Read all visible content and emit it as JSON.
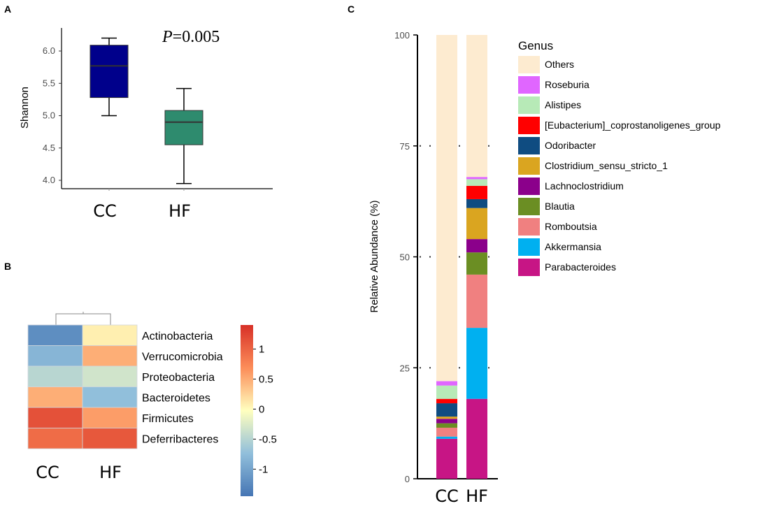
{
  "chart_data": [
    {
      "panel": "A",
      "type": "box",
      "annotation": "P=0.005",
      "annotation_italic": "P",
      "annotation_value": "=0.005",
      "xlabel": "",
      "ylabel": "Shannon",
      "ylim": [
        3.85,
        6.3
      ],
      "yticks": [
        "4.0",
        "4.5",
        "5.0",
        "5.5",
        "6.0"
      ],
      "categories": [
        "CC",
        "HF"
      ],
      "boxes": [
        {
          "name": "CC",
          "min": 5.0,
          "q1": 5.28,
          "median": 5.77,
          "q3": 6.09,
          "max": 6.2,
          "color": "#00008b"
        },
        {
          "name": "HF",
          "min": 3.95,
          "q1": 4.55,
          "median": 4.9,
          "q3": 5.08,
          "max": 5.42,
          "color": "#2e8b6e"
        }
      ]
    },
    {
      "panel": "B",
      "type": "heatmap",
      "rows": [
        "Actinobacteria",
        "Verrucomicrobia",
        "Proteobacteria",
        "Bacteroidetes",
        "Firmicutes",
        "Deferribacteres"
      ],
      "columns": [
        "CC",
        "HF"
      ],
      "values": [
        [
          -1.2,
          0.1
        ],
        [
          -0.8,
          0.5
        ],
        [
          -0.45,
          -0.3
        ],
        [
          0.5,
          -0.7
        ],
        [
          1.15,
          0.6
        ],
        [
          0.95,
          1.1
        ]
      ],
      "colorbar": {
        "min": -1.45,
        "max": 1.4,
        "ticks": [
          1,
          0.5,
          0,
          -0.5,
          -1
        ],
        "tick_labels": [
          "1",
          "0.5",
          "0",
          "-0.5",
          "-1"
        ]
      }
    },
    {
      "panel": "C",
      "type": "stacked-bar",
      "title": "",
      "xlabel": "",
      "ylabel": "Relative Abundance (%)",
      "ylim": [
        0,
        100
      ],
      "yticks": [
        "0",
        "25",
        "50",
        "75",
        "100"
      ],
      "categories": [
        "CC",
        "HF"
      ],
      "legend_title": "Genus",
      "series": [
        {
          "name": "Parabacteroides",
          "color": "#c71585",
          "values": [
            9.0,
            18.0
          ]
        },
        {
          "name": "Akkermansia",
          "color": "#00b0f0",
          "values": [
            0.5,
            16.0
          ]
        },
        {
          "name": "Romboutsia",
          "color": "#f08080",
          "values": [
            2.0,
            12.0
          ]
        },
        {
          "name": "Blautia",
          "color": "#6b8e23",
          "values": [
            1.0,
            5.0
          ]
        },
        {
          "name": "Lachnoclostridium",
          "color": "#8b008b",
          "values": [
            1.0,
            3.0
          ]
        },
        {
          "name": "Clostridium_sensu_stricto_1",
          "color": "#daa520",
          "values": [
            0.5,
            7.0
          ]
        },
        {
          "name": "Odoribacter",
          "color": "#0f4c81",
          "values": [
            3.0,
            2.0
          ]
        },
        {
          "name": "[Eubacterium]_coprostanoligenes_group",
          "color": "#ff0000",
          "values": [
            1.0,
            3.0
          ]
        },
        {
          "name": "Alistipes",
          "color": "#b7eab7",
          "values": [
            3.0,
            1.5
          ]
        },
        {
          "name": "Roseburia",
          "color": "#e066ff",
          "values": [
            1.0,
            0.5
          ]
        },
        {
          "name": "Others",
          "color": "#fdebd0",
          "values": [
            78.0,
            32.0
          ]
        }
      ]
    }
  ],
  "panels": {
    "a": "A",
    "b": "B",
    "c": "C"
  }
}
